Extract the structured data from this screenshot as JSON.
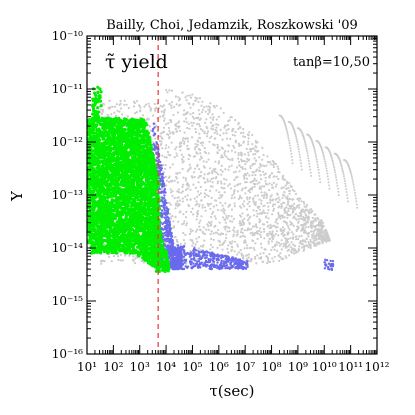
{
  "chart_data": {
    "type": "scatter",
    "title": "Bailly, Choi, Jedamzik, Roszkowski '09",
    "xlabel": "τ(sec)",
    "ylabel": "Y",
    "x_scale": "log",
    "y_scale": "log",
    "xlim": [
      10,
      1000000000000.0
    ],
    "ylim": [
      1e-16,
      1e-10
    ],
    "x_tick_labels": [
      "10¹",
      "10²",
      "10³",
      "10⁴",
      "10⁵",
      "10⁶",
      "10⁷",
      "10⁸",
      "10⁹",
      "10¹⁰",
      "10¹¹",
      "10¹²"
    ],
    "y_tick_labels": [
      "10⁻¹⁶",
      "10⁻¹⁵",
      "10⁻¹⁴",
      "10⁻¹³",
      "10⁻¹²",
      "10⁻¹¹",
      "10⁻¹⁰"
    ],
    "annotations": {
      "yield_label": "τ̃ yield",
      "tanbeta_label": "tanβ=10,50"
    },
    "reference_line": {
      "orientation": "vertical",
      "x": 5000,
      "style": "dashed",
      "color": "#ee3333"
    },
    "series": [
      {
        "color": "#cccccc",
        "region": {
          "tau_range": [
            30,
            100000000000.0
          ],
          "Y_range": [
            5e-15,
            1e-11
          ],
          "description_points": [
            [
              10000.0,
              1e-11
            ],
            [
              100000.0,
              8e-12
            ],
            [
              1000000.0,
              5e-12
            ],
            [
              10000000.0,
              2e-12
            ],
            [
              100000000.0,
              5e-13
            ],
            [
              1000000000.0,
              1e-13
            ],
            [
              10000000000.0,
              3e-14
            ],
            [
              30000000000.0,
              5e-15
            ]
          ]
        }
      },
      {
        "color": "#6a6aee",
        "region": {
          "tau_range": [
            2000,
            30000000000.0
          ],
          "Y_range": [
            4e-15,
            3e-12
          ],
          "description_points": [
            [
              3000.0,
              3e-12
            ],
            [
              5000.0,
              1e-12
            ],
            [
              8000.0,
              2e-13
            ],
            [
              12000.0,
              5e-14
            ],
            [
              20000.0,
              1e-14
            ],
            [
              100000.0,
              8e-15
            ],
            [
              1000000.0,
              5e-15
            ],
            [
              20000000000.0,
              4e-15
            ]
          ]
        }
      },
      {
        "color": "#00ee00",
        "region": {
          "tau_range": [
            10,
            20000.0
          ],
          "Y_range": [
            4e-15,
            1e-11
          ],
          "description_points": [
            [
              10,
              3e-12
            ],
            [
              20,
              1e-11
            ],
            [
              100,
              3e-12
            ],
            [
              1000.0,
              3e-12
            ],
            [
              3000.0,
              1e-12
            ],
            [
              5000.0,
              1e-13
            ],
            [
              8000.0,
              1e-14
            ],
            [
              15000.0,
              4e-15
            ]
          ]
        }
      }
    ],
    "grid": false,
    "legend": "none"
  }
}
